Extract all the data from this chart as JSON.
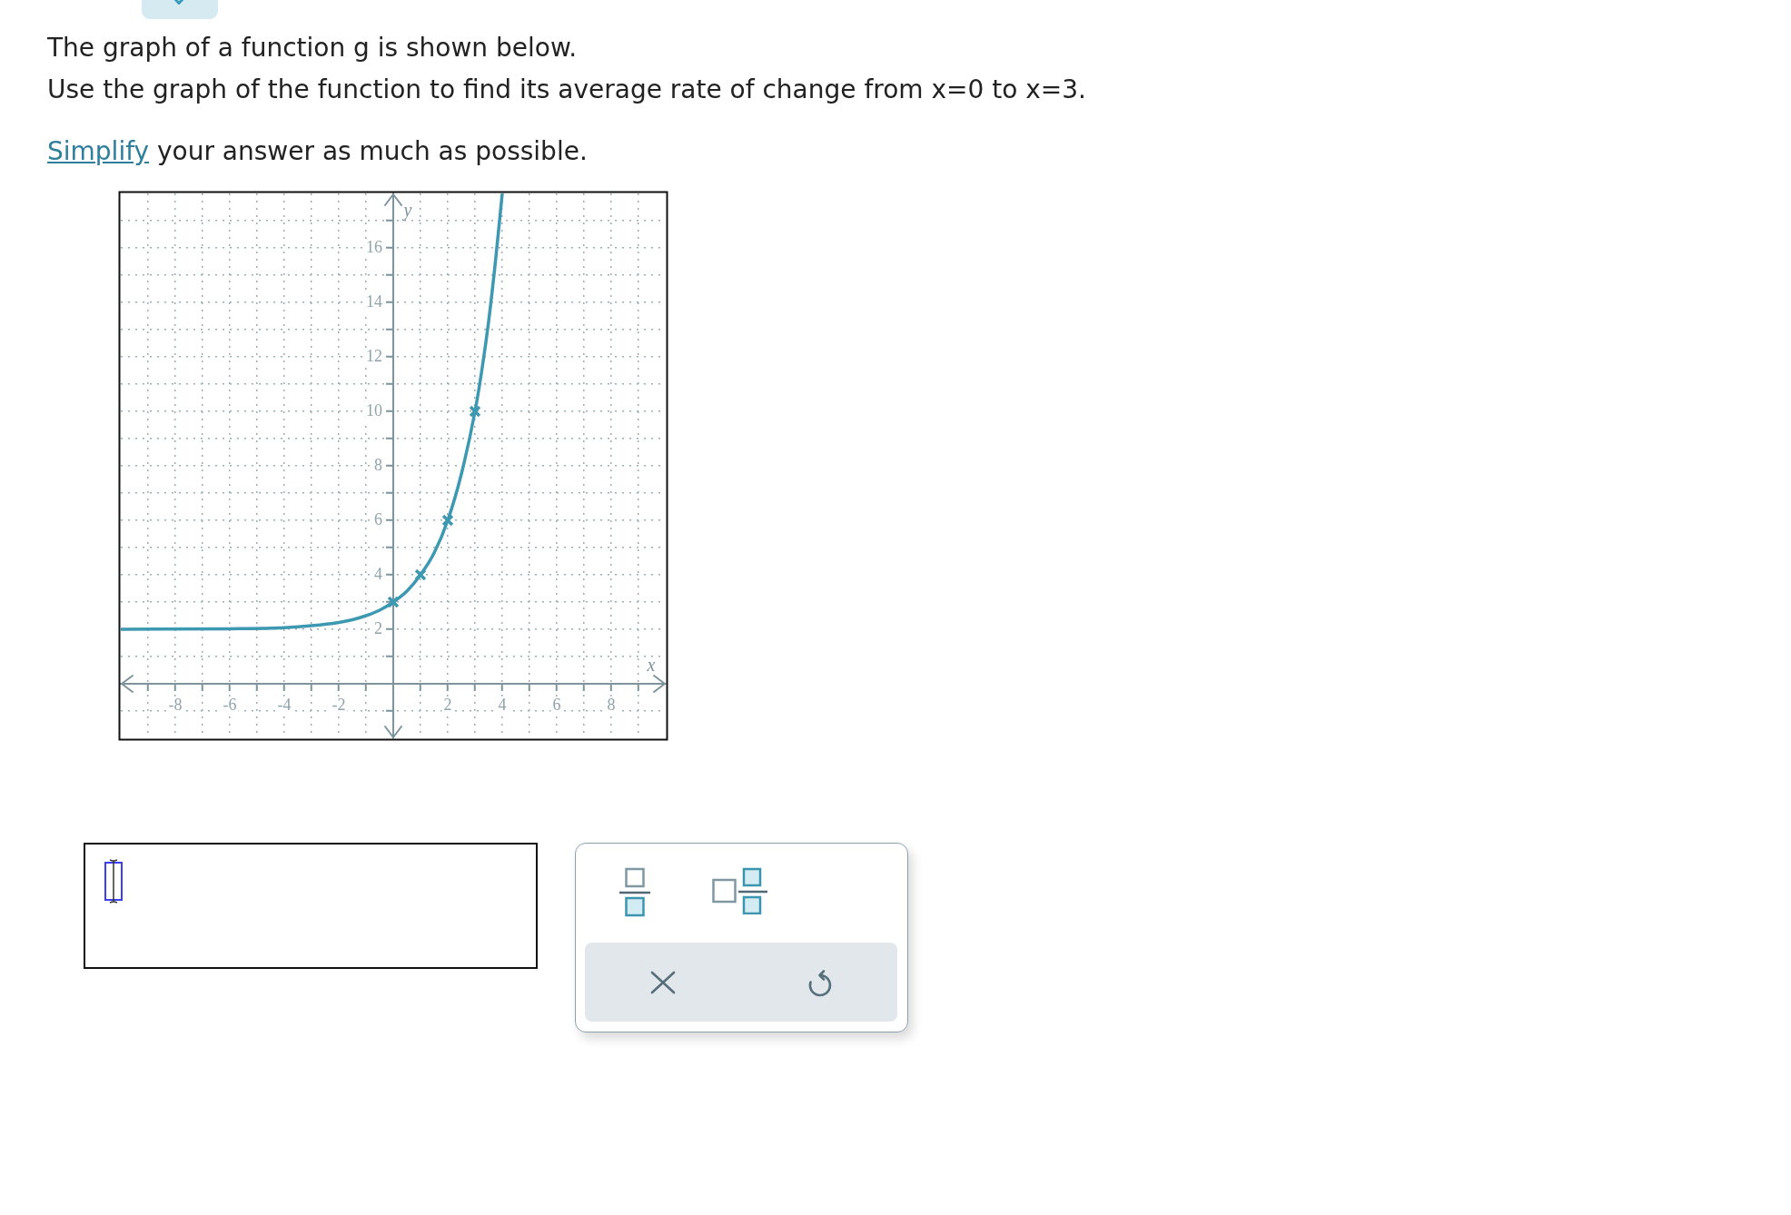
{
  "chart_data": {
    "type": "line",
    "title": "The graph of a function g is shown below.",
    "subtitle": "Use the graph of the function to find its average rate of change from x=0 to x=3.",
    "annotations": [
      "Simplify your answer as much as possible."
    ],
    "xlabel": "x",
    "ylabel": "y",
    "xlim": [
      -10,
      10
    ],
    "ylim": [
      -2,
      18
    ],
    "xticks": [
      {
        "value": -9,
        "label": null
      },
      -8,
      {
        "value": -7,
        "label": null
      },
      -6,
      {
        "value": -5,
        "label": null
      },
      -4,
      {
        "value": -3,
        "label": null
      },
      -2,
      {
        "value": -1,
        "label": null
      },
      {
        "value": 1,
        "label": null
      },
      2,
      {
        "value": 3,
        "label": null
      },
      4,
      {
        "value": 5,
        "label": null
      },
      6,
      {
        "value": 7,
        "label": null
      },
      8,
      {
        "value": 9,
        "label": null
      }
    ],
    "yticks": [
      {
        "value": -1,
        "label": null
      },
      {
        "value": 1,
        "label": null
      },
      2,
      {
        "value": 3,
        "label": null
      },
      4,
      {
        "value": 5,
        "label": null
      },
      6,
      {
        "value": 7,
        "label": null
      },
      8,
      {
        "value": 9,
        "label": null
      },
      10,
      {
        "value": 11,
        "label": null
      },
      12,
      {
        "value": 13,
        "label": null
      },
      14,
      {
        "value": 15,
        "label": null
      },
      16,
      {
        "value": 17,
        "label": null
      }
    ],
    "grid": true,
    "series": [
      {
        "type": "line",
        "color": "#3d98b2",
        "marker": "none",
        "x": [
          -10,
          -6,
          -4,
          -3,
          -2,
          -1.5,
          -1,
          -0.5,
          0,
          0.5,
          1,
          1.5,
          2,
          2.5,
          3,
          3.25,
          3.5,
          3.75,
          4
        ],
        "values": [
          2,
          2.02,
          2.06,
          2.13,
          2.25,
          2.35,
          2.5,
          2.7,
          3,
          3.4,
          4,
          4.8,
          6,
          7.7,
          10,
          11.5,
          13.3,
          15.5,
          18
        ]
      },
      {
        "type": "scatter",
        "color": "#3d98b2",
        "marker": "cross",
        "x": [
          0,
          1,
          2,
          3
        ],
        "values": [
          3,
          4,
          6,
          10
        ]
      }
    ]
  }
}
